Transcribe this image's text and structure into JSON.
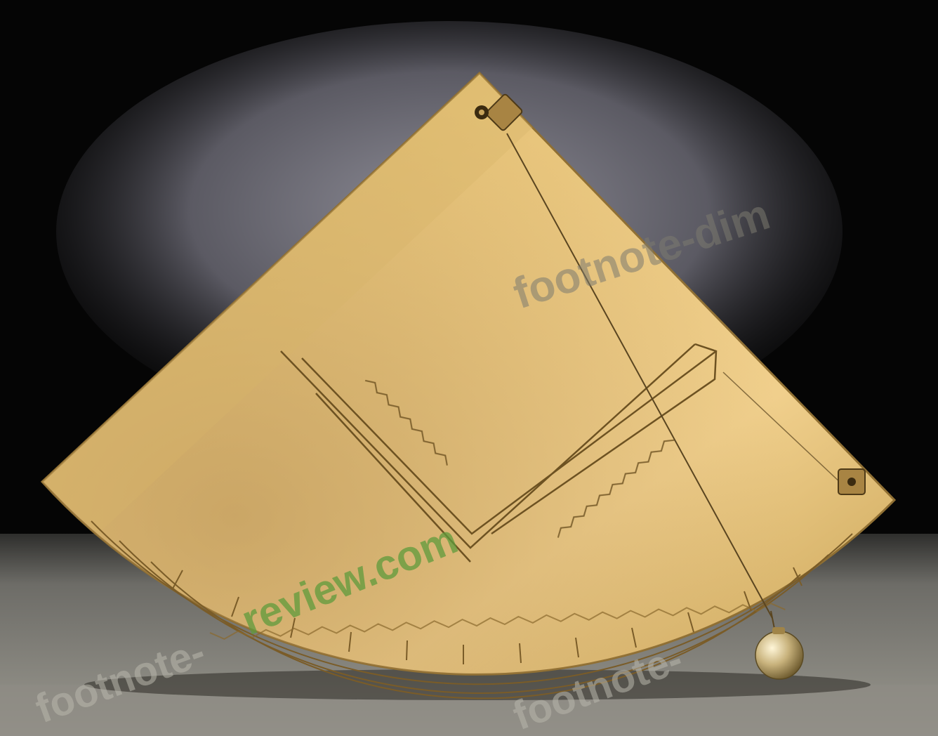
{
  "photo": {
    "subject": "brass quadrant instrument with plumb bob",
    "colors": {
      "background_top": "#050505",
      "background_floor": "#8a8880",
      "shadow_gray": "#7c7b86",
      "brass_light": "#e6c277",
      "brass_mid": "#caa158",
      "brass_dark": "#9a7a3c",
      "engraving": "#6d5222",
      "bob": "#d6c79a"
    }
  },
  "watermarks": {
    "text_a": "footnote-dim",
    "text_b": "review.com",
    "text_c": "footnote-",
    "text_d": "footnote-"
  }
}
